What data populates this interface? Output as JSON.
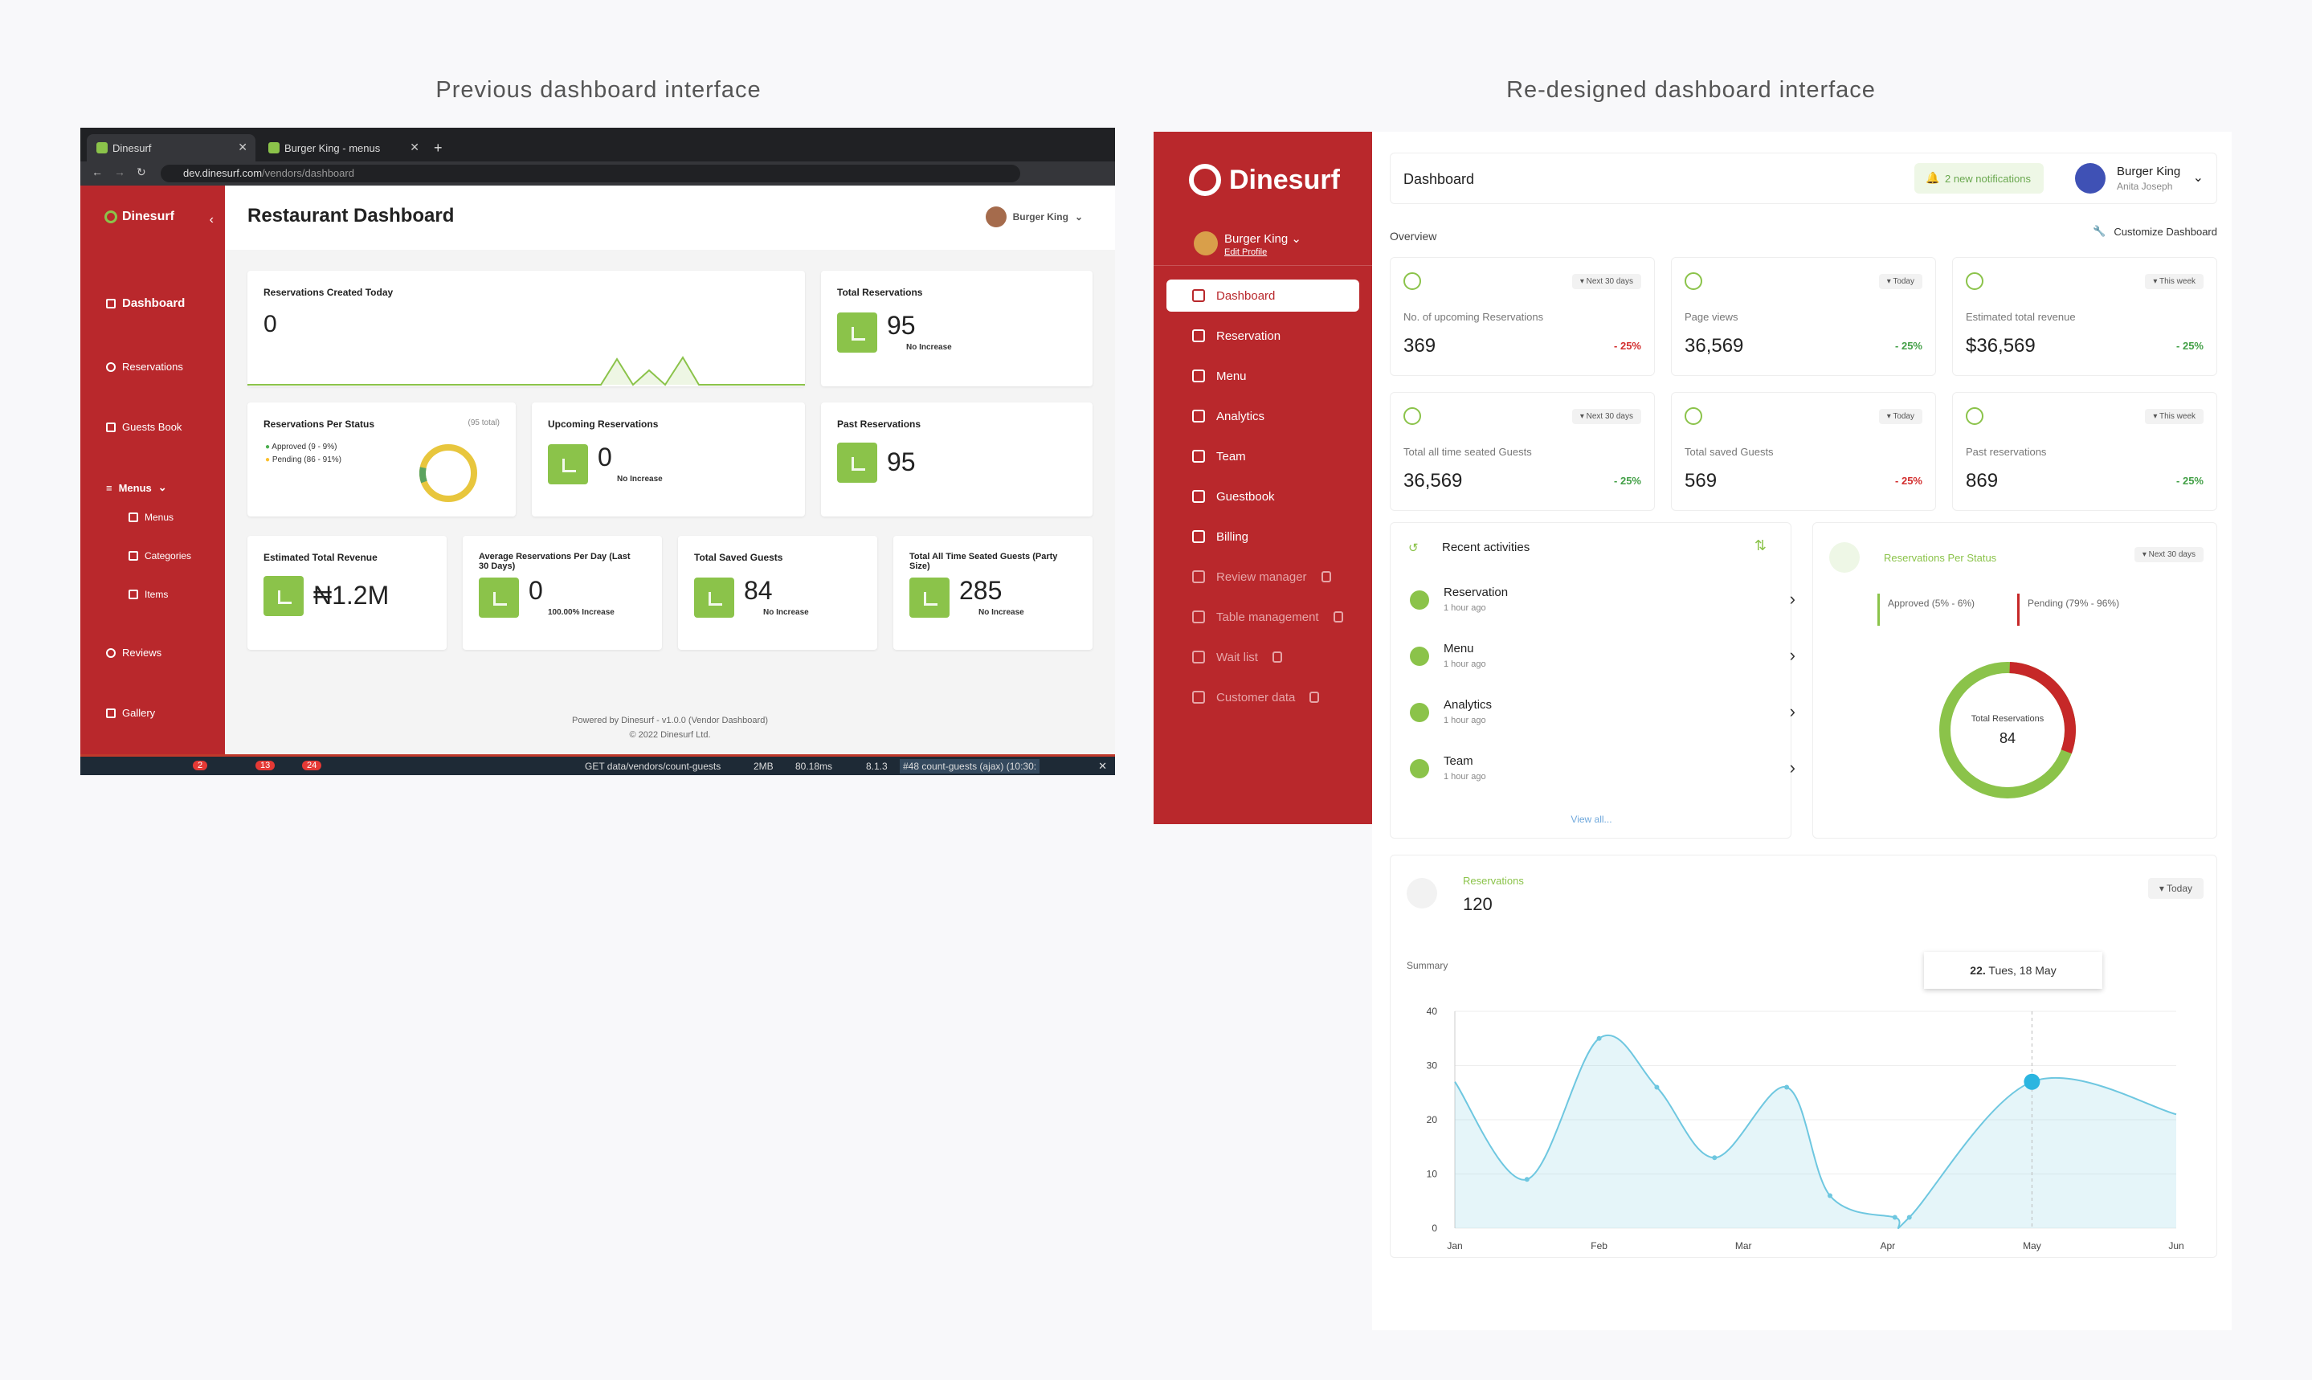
{
  "headings": {
    "left": "Previous dashboard interface",
    "right": "Re-designed dashboard interface"
  },
  "old": {
    "tabs": [
      {
        "label": "Dinesurf"
      },
      {
        "label": "Burger King - menus"
      }
    ],
    "url_host": "dev.dinesurf.com",
    "url_path": "/vendors/dashboard",
    "brand": "Dinesurf",
    "nav": {
      "dashboard": "Dashboard",
      "reservations": "Reservations",
      "guests": "Guests Book",
      "menus": "Menus",
      "menus_sub": "Menus",
      "categories": "Categories",
      "items": "Items",
      "reviews": "Reviews",
      "gallery": "Gallery"
    },
    "title": "Restaurant Dashboard",
    "user": "Burger King",
    "cards": {
      "created_today": {
        "title": "Reservations Created Today",
        "value": "0"
      },
      "total": {
        "title": "Total Reservations",
        "value": "95",
        "note": "No Increase"
      },
      "per_status": {
        "title": "Reservations Per Status",
        "total": "(95 total)",
        "approved": "Approved (9 - 9%)",
        "pending": "Pending (86 - 91%)"
      },
      "upcoming": {
        "title": "Upcoming Reservations",
        "value": "0",
        "note": "No Increase"
      },
      "past": {
        "title": "Past Reservations",
        "value": "95"
      },
      "revenue": {
        "title": "Estimated Total Revenue",
        "value": "₦1.2M"
      },
      "avg": {
        "title": "Average Reservations Per Day (Last 30 Days)",
        "value": "0",
        "note": "100.00% Increase"
      },
      "saved": {
        "title": "Total Saved Guests",
        "value": "84",
        "note": "No Increase"
      },
      "seated": {
        "title": "Total All Time Seated Guests (Party Size)",
        "value": "285",
        "note": "No Increase"
      }
    },
    "footer1": "Powered by Dinesurf - v1.0.0 (Vendor Dashboard)",
    "footer2": "© 2022 Dinesurf Ltd.",
    "debug": {
      "badge1": "2",
      "badge2": "13",
      "badge3": "24",
      "route": "GET data/vendors/count-guests",
      "mem": "2MB",
      "time": "80.18ms",
      "ver": "8.1.3",
      "req": "#48 count-guests (ajax) (10:30:"
    }
  },
  "new": {
    "brand": "Dinesurf",
    "restaurant": "Burger King",
    "edit_profile": "Edit Profile",
    "nav": [
      {
        "label": "Dashboard",
        "active": true,
        "locked": false
      },
      {
        "label": "Reservation",
        "active": false,
        "locked": false
      },
      {
        "label": "Menu",
        "active": false,
        "locked": false
      },
      {
        "label": "Analytics",
        "active": false,
        "locked": false
      },
      {
        "label": "Team",
        "active": false,
        "locked": false
      },
      {
        "label": "Guestbook",
        "active": false,
        "locked": false
      },
      {
        "label": "Billing",
        "active": false,
        "locked": false
      },
      {
        "label": "Review manager",
        "active": false,
        "locked": true
      },
      {
        "label": "Table management",
        "active": false,
        "locked": true
      },
      {
        "label": "Wait list",
        "active": false,
        "locked": true
      },
      {
        "label": "Customer data",
        "active": false,
        "locked": true
      }
    ],
    "header": {
      "title": "Dashboard",
      "notifications": "2 new notifications",
      "user_name": "Burger King",
      "user_sub": "Anita Joseph"
    },
    "overview": "Overview",
    "customize": "Customize Dashboard",
    "stats": [
      {
        "label": "No. of upcoming Reservations",
        "value": "369",
        "pct": "- 25%",
        "range": "Next 30 days",
        "color": "#d32f2f"
      },
      {
        "label": "Page views",
        "value": "36,569",
        "pct": "- 25%",
        "range": "Today",
        "color": "#43a047"
      },
      {
        "label": "Estimated total revenue",
        "value": "$36,569",
        "pct": "- 25%",
        "range": "This week",
        "color": "#43a047"
      },
      {
        "label": "Total all time seated Guests",
        "value": "36,569",
        "pct": "- 25%",
        "range": "Next 30 days",
        "color": "#43a047"
      },
      {
        "label": "Total saved Guests",
        "value": "569",
        "pct": "- 25%",
        "range": "Today",
        "color": "#d32f2f"
      },
      {
        "label": "Past reservations",
        "value": "869",
        "pct": "- 25%",
        "range": "This week",
        "color": "#43a047"
      }
    ],
    "activities": {
      "title": "Recent activities",
      "items": [
        {
          "name": "Reservation",
          "time": "1 hour ago"
        },
        {
          "name": "Menu",
          "time": "1 hour ago"
        },
        {
          "name": "Analytics",
          "time": "1 hour ago"
        },
        {
          "name": "Team",
          "time": "1 hour ago"
        }
      ],
      "view_all": "View all..."
    },
    "status": {
      "title": "Reservations Per Status",
      "range": "Next 30 days",
      "approved": "Approved (5% - 6%)",
      "pending": "Pending (79% - 96%)",
      "center_label": "Total Reservations",
      "center_value": "84"
    },
    "reservations": {
      "label": "Reservations",
      "value": "120",
      "range": "Today",
      "summary": "Summary",
      "tooltip_day": "22.",
      "tooltip_date": "Tues, 18 May"
    }
  },
  "chart_data": {
    "type": "area",
    "categories": [
      "Jan",
      "Feb",
      "Mar",
      "Apr",
      "May",
      "Jun"
    ],
    "x": [
      0,
      0.5,
      1,
      1.4,
      1.8,
      2.3,
      2.6,
      3.05,
      3.15,
      4,
      5
    ],
    "values": [
      27,
      9,
      35,
      26,
      13,
      26,
      6,
      2,
      2,
      27,
      21
    ],
    "ylim": [
      0,
      40
    ],
    "yticks": [
      0,
      10,
      20,
      30,
      40
    ],
    "highlight_index": 9,
    "color": "#6ec7e0"
  }
}
